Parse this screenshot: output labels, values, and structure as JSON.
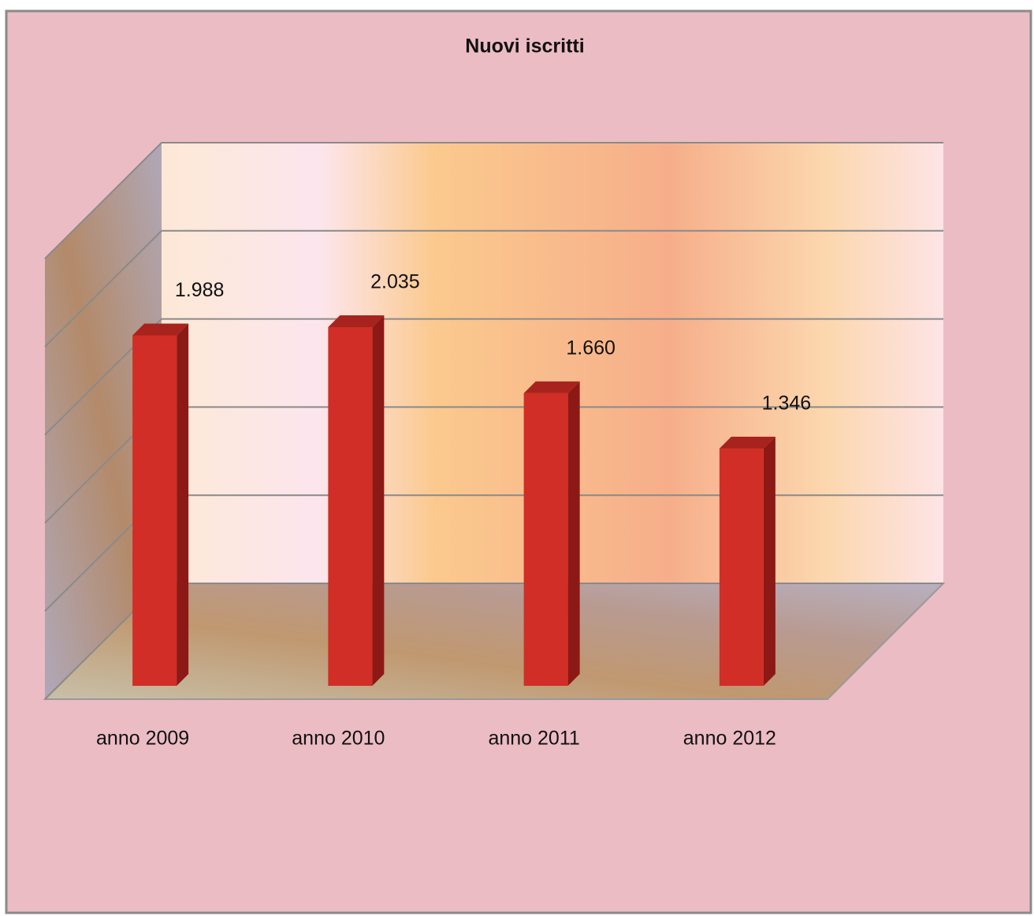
{
  "chart_data": {
    "type": "bar3d",
    "title": "Nuovi iscritti",
    "categories": [
      "anno 2009",
      "anno 2010",
      "anno 2011",
      "anno 2012"
    ],
    "values": [
      1988,
      2035,
      1660,
      1346
    ],
    "value_labels": [
      "1.988",
      "2.035",
      "1.660",
      "1.346"
    ],
    "color": "#d02e26",
    "ylim": [
      0,
      2500
    ],
    "yticks": [
      0,
      500,
      1000,
      1500,
      2000,
      2500
    ],
    "grid": true
  }
}
